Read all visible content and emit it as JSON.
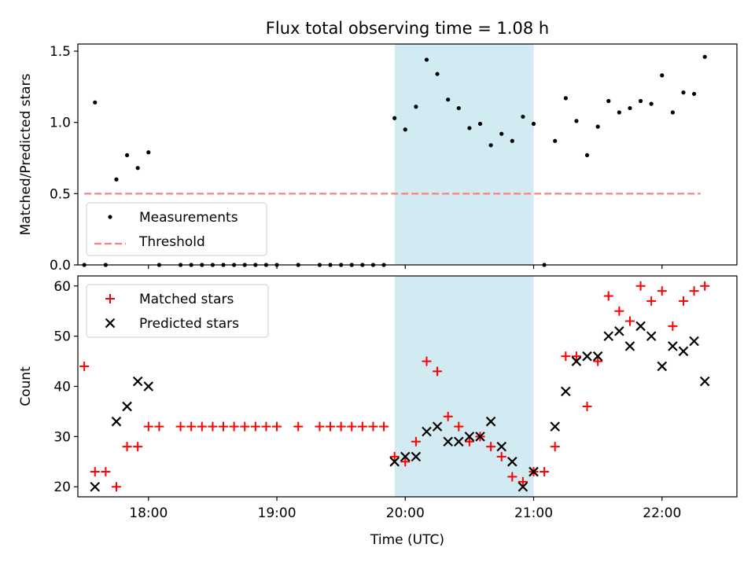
{
  "title": "Flux total observing time = 1.08 h",
  "colors": {
    "measurement": "#000000",
    "threshold": "#ff7f7f",
    "matched": "#ff0000",
    "predicted": "#000000",
    "highlight": "#add8e6"
  },
  "chart_data": [
    {
      "type": "scatter",
      "panel": "top",
      "ylabel": "Matched/Predicted stars",
      "xlabel": "",
      "ylim": [
        0,
        1.55
      ],
      "xlim": [
        "17:27",
        "22:35"
      ],
      "yticks": [
        "0.0",
        "0.5",
        "1.0",
        "1.5"
      ],
      "highlight_span": [
        "19:55",
        "21:00"
      ],
      "legend": {
        "position": "lower-left",
        "entries": [
          "Measurements",
          "Threshold"
        ]
      },
      "threshold": {
        "name": "Threshold",
        "value": 0.5,
        "x_range": [
          "17:30",
          "22:18"
        ]
      },
      "series": [
        {
          "name": "Measurements",
          "points": [
            [
              "17:30",
              0.0
            ],
            [
              "17:35",
              1.14
            ],
            [
              "17:40",
              0.0
            ],
            [
              "17:45",
              0.6
            ],
            [
              "17:50",
              0.77
            ],
            [
              "17:55",
              0.68
            ],
            [
              "18:00",
              0.79
            ],
            [
              "18:05",
              0.0
            ],
            [
              "18:15",
              0.0
            ],
            [
              "18:20",
              0.0
            ],
            [
              "18:25",
              0.0
            ],
            [
              "18:30",
              0.0
            ],
            [
              "18:35",
              0.0
            ],
            [
              "18:40",
              0.0
            ],
            [
              "18:45",
              0.0
            ],
            [
              "18:50",
              0.0
            ],
            [
              "18:55",
              0.0
            ],
            [
              "19:00",
              0.0
            ],
            [
              "19:10",
              0.0
            ],
            [
              "19:20",
              0.0
            ],
            [
              "19:25",
              0.0
            ],
            [
              "19:30",
              0.0
            ],
            [
              "19:35",
              0.0
            ],
            [
              "19:40",
              0.0
            ],
            [
              "19:45",
              0.0
            ],
            [
              "19:50",
              0.0
            ],
            [
              "19:55",
              1.03
            ],
            [
              "20:00",
              0.95
            ],
            [
              "20:05",
              1.11
            ],
            [
              "20:10",
              1.44
            ],
            [
              "20:15",
              1.34
            ],
            [
              "20:20",
              1.16
            ],
            [
              "20:25",
              1.1
            ],
            [
              "20:30",
              0.96
            ],
            [
              "20:35",
              0.99
            ],
            [
              "20:40",
              0.84
            ],
            [
              "20:45",
              0.92
            ],
            [
              "20:50",
              0.87
            ],
            [
              "20:55",
              1.04
            ],
            [
              "21:00",
              0.99
            ],
            [
              "21:05",
              0.0
            ],
            [
              "21:10",
              0.87
            ],
            [
              "21:15",
              1.17
            ],
            [
              "21:20",
              1.01
            ],
            [
              "21:25",
              0.77
            ],
            [
              "21:30",
              0.97
            ],
            [
              "21:35",
              1.15
            ],
            [
              "21:40",
              1.07
            ],
            [
              "21:45",
              1.1
            ],
            [
              "21:50",
              1.15
            ],
            [
              "21:55",
              1.13
            ],
            [
              "22:00",
              1.33
            ],
            [
              "22:05",
              1.07
            ],
            [
              "22:10",
              1.21
            ],
            [
              "22:15",
              1.2
            ],
            [
              "22:20",
              1.46
            ]
          ]
        }
      ]
    },
    {
      "type": "scatter",
      "panel": "bottom",
      "ylabel": "Count",
      "xlabel": "Time (UTC)",
      "ylim": [
        18,
        62
      ],
      "xlim": [
        "17:27",
        "22:35"
      ],
      "xticks": [
        "18:00",
        "19:00",
        "20:00",
        "21:00",
        "22:00"
      ],
      "yticks": [
        "20",
        "30",
        "40",
        "50",
        "60"
      ],
      "highlight_span": [
        "19:55",
        "21:00"
      ],
      "legend": {
        "position": "top-left",
        "entries": [
          "Matched stars",
          "Predicted stars"
        ]
      },
      "series": [
        {
          "name": "Matched stars",
          "marker": "+",
          "points": [
            [
              "17:30",
              44
            ],
            [
              "17:35",
              23
            ],
            [
              "17:40",
              23
            ],
            [
              "17:45",
              20
            ],
            [
              "17:50",
              28
            ],
            [
              "17:55",
              28
            ],
            [
              "18:00",
              32
            ],
            [
              "18:05",
              32
            ],
            [
              "18:15",
              32
            ],
            [
              "18:20",
              32
            ],
            [
              "18:25",
              32
            ],
            [
              "18:30",
              32
            ],
            [
              "18:35",
              32
            ],
            [
              "18:40",
              32
            ],
            [
              "18:45",
              32
            ],
            [
              "18:50",
              32
            ],
            [
              "18:55",
              32
            ],
            [
              "19:00",
              32
            ],
            [
              "19:10",
              32
            ],
            [
              "19:20",
              32
            ],
            [
              "19:25",
              32
            ],
            [
              "19:30",
              32
            ],
            [
              "19:35",
              32
            ],
            [
              "19:40",
              32
            ],
            [
              "19:45",
              32
            ],
            [
              "19:50",
              32
            ],
            [
              "19:55",
              26
            ],
            [
              "20:00",
              25
            ],
            [
              "20:05",
              29
            ],
            [
              "20:10",
              45
            ],
            [
              "20:15",
              43
            ],
            [
              "20:20",
              34
            ],
            [
              "20:25",
              32
            ],
            [
              "20:30",
              29
            ],
            [
              "20:35",
              30
            ],
            [
              "20:40",
              28
            ],
            [
              "20:45",
              26
            ],
            [
              "20:50",
              22
            ],
            [
              "20:55",
              21
            ],
            [
              "21:00",
              23
            ],
            [
              "21:05",
              23
            ],
            [
              "21:10",
              28
            ],
            [
              "21:15",
              46
            ],
            [
              "21:20",
              46
            ],
            [
              "21:25",
              36
            ],
            [
              "21:30",
              45
            ],
            [
              "21:35",
              58
            ],
            [
              "21:40",
              55
            ],
            [
              "21:45",
              53
            ],
            [
              "21:50",
              60
            ],
            [
              "21:55",
              57
            ],
            [
              "22:00",
              59
            ],
            [
              "22:05",
              52
            ],
            [
              "22:10",
              57
            ],
            [
              "22:15",
              59
            ],
            [
              "22:20",
              60
            ]
          ]
        },
        {
          "name": "Predicted stars",
          "marker": "x",
          "points": [
            [
              "17:35",
              20
            ],
            [
              "17:45",
              33
            ],
            [
              "17:50",
              36
            ],
            [
              "17:55",
              41
            ],
            [
              "18:00",
              40
            ],
            [
              "19:55",
              25
            ],
            [
              "20:00",
              26
            ],
            [
              "20:05",
              26
            ],
            [
              "20:10",
              31
            ],
            [
              "20:15",
              32
            ],
            [
              "20:20",
              29
            ],
            [
              "20:25",
              29
            ],
            [
              "20:30",
              30
            ],
            [
              "20:35",
              30
            ],
            [
              "20:40",
              33
            ],
            [
              "20:45",
              28
            ],
            [
              "20:50",
              25
            ],
            [
              "20:55",
              20
            ],
            [
              "21:00",
              23
            ],
            [
              "21:10",
              32
            ],
            [
              "21:15",
              39
            ],
            [
              "21:20",
              45
            ],
            [
              "21:25",
              46
            ],
            [
              "21:30",
              46
            ],
            [
              "21:35",
              50
            ],
            [
              "21:40",
              51
            ],
            [
              "21:45",
              48
            ],
            [
              "21:50",
              52
            ],
            [
              "21:55",
              50
            ],
            [
              "22:00",
              44
            ],
            [
              "22:05",
              48
            ],
            [
              "22:10",
              47
            ],
            [
              "22:15",
              49
            ],
            [
              "22:20",
              41
            ]
          ]
        }
      ]
    }
  ]
}
